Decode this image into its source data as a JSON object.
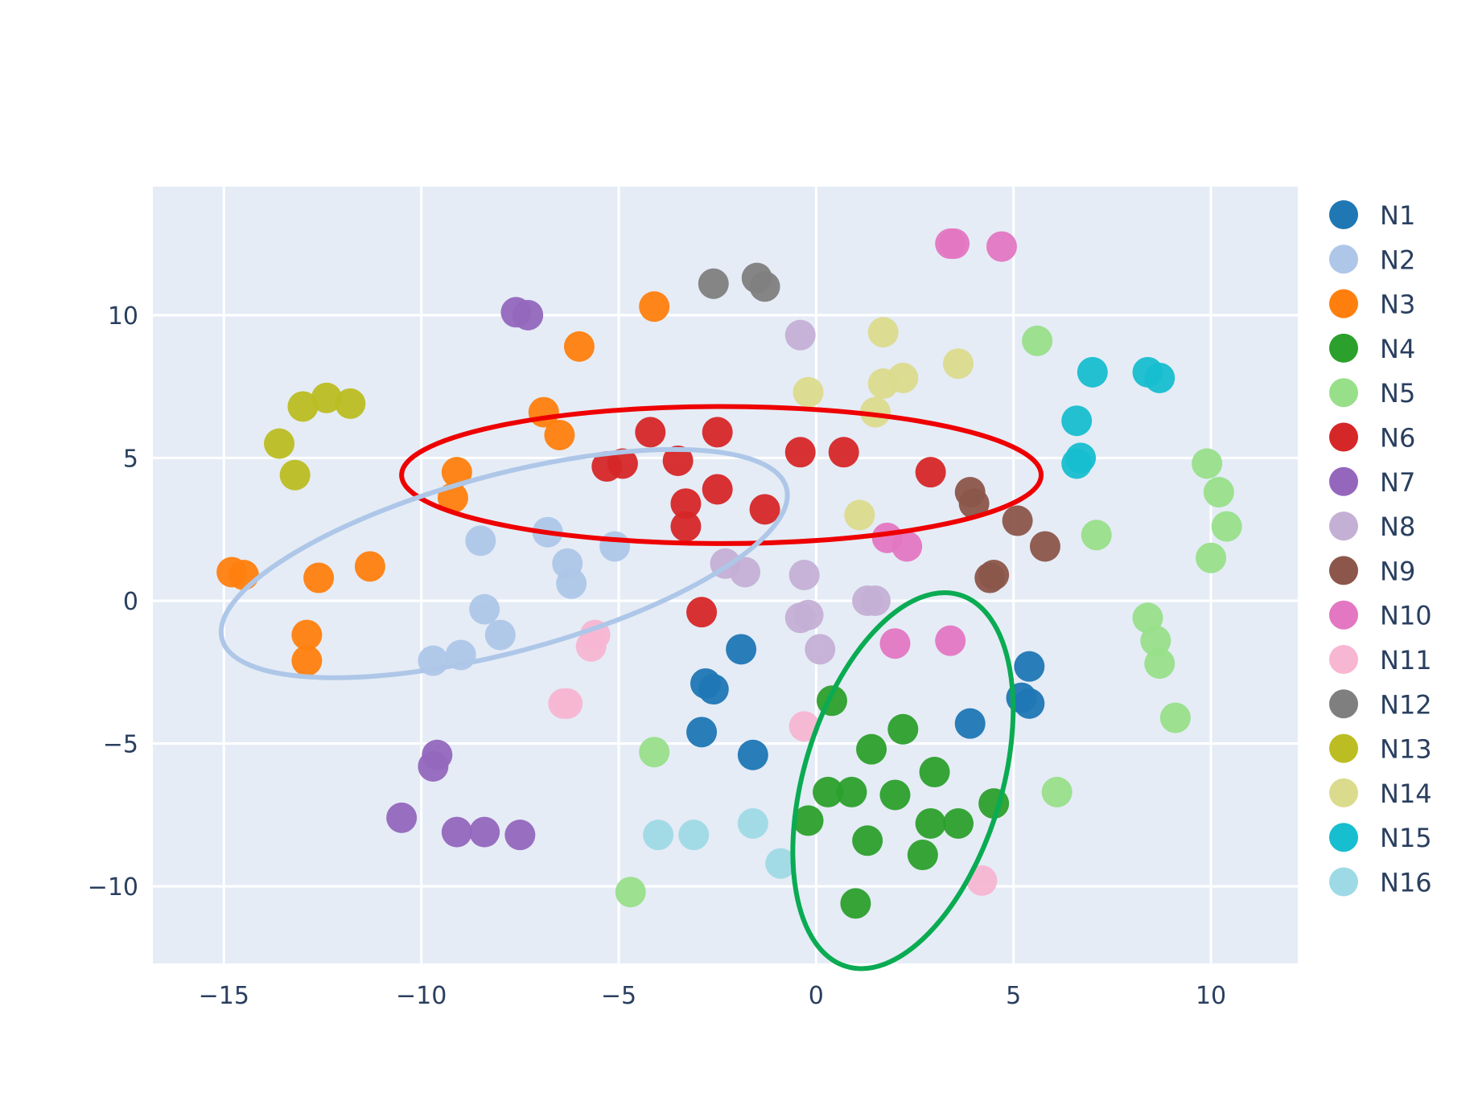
{
  "chart_data": {
    "type": "scatter",
    "title": "",
    "xlabel": "",
    "ylabel": "",
    "xlim": [
      -16.8,
      12.2
    ],
    "ylim": [
      -12.7,
      14.5
    ],
    "xticks": [
      -15,
      -10,
      -5,
      0,
      5,
      10
    ],
    "yticks": [
      -10,
      -5,
      0,
      5,
      10
    ],
    "xtick_labels": [
      "−15",
      "−10",
      "−5",
      "0",
      "5",
      "10"
    ],
    "ytick_labels": [
      "−10",
      "−5",
      "0",
      "5",
      "10"
    ],
    "grid": true,
    "legend_position": "right",
    "plot_background": "#e5ecf6",
    "series": [
      {
        "name": "N1",
        "color": "#1f77b4",
        "points": [
          [
            -2.8,
            -2.9
          ],
          [
            -2.6,
            -3.1
          ],
          [
            -1.9,
            -1.7
          ],
          [
            -2.9,
            -4.6
          ],
          [
            -1.6,
            -5.4
          ],
          [
            3.9,
            -4.3
          ],
          [
            5.4,
            -2.3
          ],
          [
            5.2,
            -3.4
          ],
          [
            5.4,
            -3.6
          ]
        ]
      },
      {
        "name": "N2",
        "color": "#aec7e8",
        "points": [
          [
            -8.5,
            2.1
          ],
          [
            -6.8,
            2.4
          ],
          [
            -6.3,
            1.3
          ],
          [
            -6.2,
            0.6
          ],
          [
            -5.1,
            1.9
          ],
          [
            -8.4,
            -0.3
          ],
          [
            -8.0,
            -1.2
          ],
          [
            -9.0,
            -1.9
          ],
          [
            -9.7,
            -2.1
          ]
        ]
      },
      {
        "name": "N3",
        "color": "#ff7f0e",
        "points": [
          [
            -14.8,
            1.0
          ],
          [
            -14.5,
            0.9
          ],
          [
            -12.6,
            0.8
          ],
          [
            -11.3,
            1.2
          ],
          [
            -12.9,
            -1.2
          ],
          [
            -12.9,
            -2.1
          ],
          [
            -9.1,
            4.5
          ],
          [
            -9.2,
            3.6
          ],
          [
            -6.9,
            6.6
          ],
          [
            -6.5,
            5.8
          ],
          [
            -6.0,
            8.9
          ],
          [
            -4.1,
            10.3
          ]
        ]
      },
      {
        "name": "N4",
        "color": "#2ca02c",
        "points": [
          [
            0.4,
            -3.5
          ],
          [
            1.4,
            -5.2
          ],
          [
            2.2,
            -4.5
          ],
          [
            3.0,
            -6.0
          ],
          [
            0.3,
            -6.7
          ],
          [
            0.9,
            -6.7
          ],
          [
            2.0,
            -6.8
          ],
          [
            -0.2,
            -7.7
          ],
          [
            2.9,
            -7.8
          ],
          [
            3.6,
            -7.8
          ],
          [
            4.5,
            -7.1
          ],
          [
            1.3,
            -8.4
          ],
          [
            2.7,
            -8.9
          ],
          [
            1.0,
            -10.6
          ]
        ]
      },
      {
        "name": "N5",
        "color": "#98df8a",
        "points": [
          [
            5.6,
            9.1
          ],
          [
            7.1,
            2.3
          ],
          [
            9.9,
            4.8
          ],
          [
            10.2,
            3.8
          ],
          [
            10.4,
            2.6
          ],
          [
            10.0,
            1.5
          ],
          [
            8.4,
            -0.6
          ],
          [
            8.6,
            -1.4
          ],
          [
            8.7,
            -2.2
          ],
          [
            9.1,
            -4.1
          ],
          [
            6.1,
            -6.7
          ],
          [
            -4.1,
            -5.3
          ],
          [
            -4.7,
            -10.2
          ]
        ]
      },
      {
        "name": "N6",
        "color": "#d62728",
        "points": [
          [
            -5.3,
            4.7
          ],
          [
            -4.9,
            4.8
          ],
          [
            -4.2,
            5.9
          ],
          [
            -3.5,
            4.9
          ],
          [
            -2.5,
            5.9
          ],
          [
            -2.5,
            3.9
          ],
          [
            -3.3,
            3.4
          ],
          [
            -3.3,
            2.6
          ],
          [
            -1.3,
            3.2
          ],
          [
            -0.4,
            5.2
          ],
          [
            0.7,
            5.2
          ],
          [
            2.9,
            4.5
          ],
          [
            -2.9,
            -0.4
          ]
        ]
      },
      {
        "name": "N7",
        "color": "#9467bd",
        "points": [
          [
            -7.6,
            10.1
          ],
          [
            -7.3,
            10.0
          ],
          [
            -9.6,
            -5.4
          ],
          [
            -9.7,
            -5.8
          ],
          [
            -10.5,
            -7.6
          ],
          [
            -9.1,
            -8.1
          ],
          [
            -8.4,
            -8.1
          ],
          [
            -7.5,
            -8.2
          ]
        ]
      },
      {
        "name": "N8",
        "color": "#c5b0d5",
        "points": [
          [
            -0.4,
            9.3
          ],
          [
            -2.3,
            1.3
          ],
          [
            -1.8,
            1.0
          ],
          [
            -0.3,
            0.9
          ],
          [
            1.3,
            0.0
          ],
          [
            1.5,
            0.0
          ],
          [
            -0.4,
            -0.6
          ],
          [
            -0.2,
            -0.5
          ],
          [
            0.1,
            -1.7
          ]
        ]
      },
      {
        "name": "N9",
        "color": "#8c564b",
        "points": [
          [
            3.9,
            3.8
          ],
          [
            4.0,
            3.4
          ],
          [
            5.1,
            2.8
          ],
          [
            5.8,
            1.9
          ],
          [
            4.5,
            0.9
          ],
          [
            4.4,
            0.8
          ]
        ]
      },
      {
        "name": "N10",
        "color": "#e377c2",
        "points": [
          [
            3.4,
            12.5
          ],
          [
            3.5,
            12.5
          ],
          [
            4.7,
            12.4
          ],
          [
            1.8,
            2.2
          ],
          [
            2.3,
            1.9
          ],
          [
            2.0,
            -1.5
          ],
          [
            3.4,
            -1.4
          ]
        ]
      },
      {
        "name": "N11",
        "color": "#f7b6d2",
        "points": [
          [
            -5.6,
            -1.2
          ],
          [
            -5.7,
            -1.6
          ],
          [
            -6.3,
            -3.6
          ],
          [
            -6.4,
            -3.6
          ],
          [
            -0.3,
            -4.4
          ],
          [
            4.2,
            -9.8
          ]
        ]
      },
      {
        "name": "N12",
        "color": "#7f7f7f",
        "points": [
          [
            -2.6,
            11.1
          ],
          [
            -1.5,
            11.3
          ],
          [
            -1.3,
            11.0
          ]
        ]
      },
      {
        "name": "N13",
        "color": "#bcbd22",
        "points": [
          [
            -13.0,
            6.8
          ],
          [
            -12.4,
            7.1
          ],
          [
            -11.8,
            6.9
          ],
          [
            -13.6,
            5.5
          ],
          [
            -13.2,
            4.4
          ]
        ]
      },
      {
        "name": "N14",
        "color": "#dbdb8d",
        "points": [
          [
            1.7,
            9.4
          ],
          [
            -0.2,
            7.3
          ],
          [
            1.7,
            7.6
          ],
          [
            2.2,
            7.8
          ],
          [
            3.6,
            8.3
          ],
          [
            1.5,
            6.6
          ],
          [
            1.1,
            3.0
          ]
        ]
      },
      {
        "name": "N15",
        "color": "#17becf",
        "points": [
          [
            7.0,
            8.0
          ],
          [
            8.4,
            8.0
          ],
          [
            8.7,
            7.8
          ],
          [
            6.6,
            6.3
          ],
          [
            6.6,
            4.8
          ],
          [
            6.7,
            5.0
          ]
        ]
      },
      {
        "name": "N16",
        "color": "#9edae5",
        "points": [
          [
            -4.0,
            -8.2
          ],
          [
            -3.1,
            -8.2
          ],
          [
            -1.6,
            -7.8
          ],
          [
            -0.9,
            -9.2
          ]
        ]
      }
    ],
    "annotations": [
      {
        "shape": "ellipse",
        "color": "#ee0000",
        "center": [
          -2.4,
          4.4
        ],
        "radius_x": 8.1,
        "radius_y": 2.4,
        "angle_deg": 0
      },
      {
        "shape": "ellipse",
        "color": "#aec7e8",
        "center": [
          -7.9,
          1.3
        ],
        "radius_x": 7.4,
        "radius_y": 3.1,
        "angle_deg": -15
      },
      {
        "shape": "ellipse",
        "color": "#0aab52",
        "center": [
          2.2,
          -6.3
        ],
        "radius_x": 2.5,
        "radius_y": 6.8,
        "angle_deg": 17
      }
    ]
  }
}
